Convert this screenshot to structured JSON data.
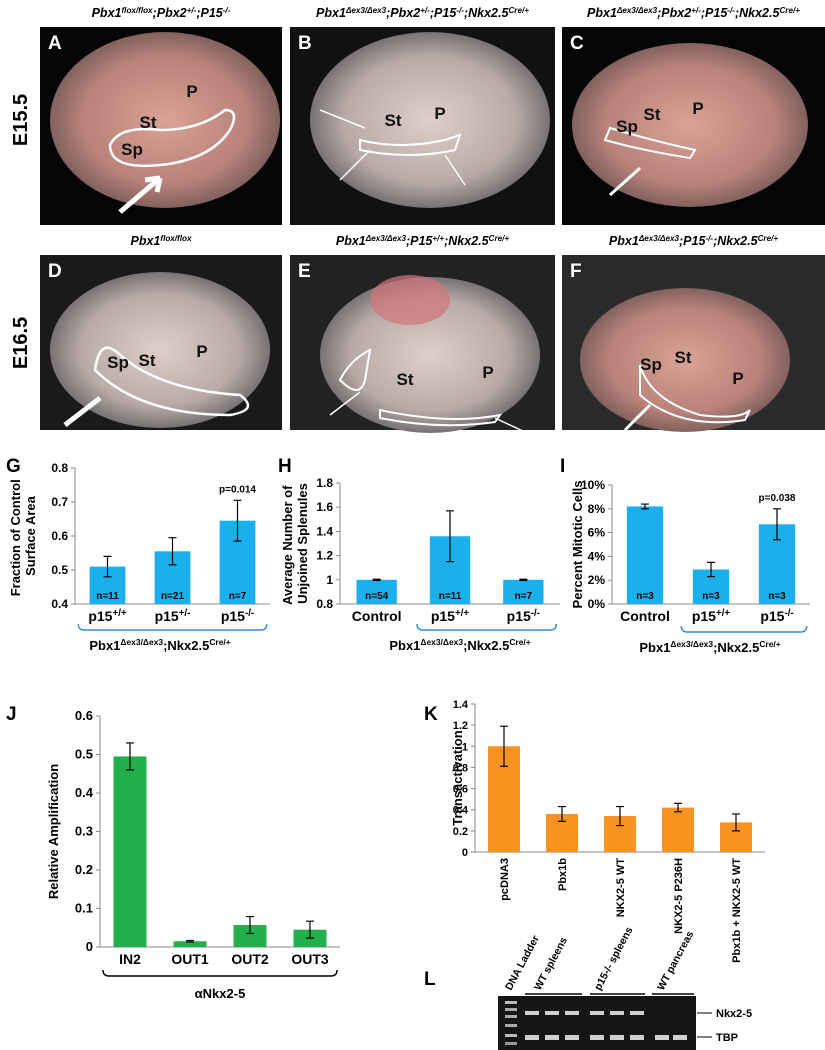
{
  "figure": {
    "row_labels": [
      "E15.5",
      "E16.5"
    ],
    "photo_panels": [
      {
        "letter": "A",
        "title_parts": [
          "Pbx1",
          "flox/flox",
          ";Pbx2",
          "+/-",
          ";P15",
          "-/-"
        ],
        "labels": [
          "St",
          "P",
          "Sp"
        ]
      },
      {
        "letter": "B",
        "title_parts": [
          "Pbx1",
          "Δex3/Δex3",
          ";Pbx2",
          "+/-",
          ";P15",
          "-/-",
          ";Nkx2.5",
          "Cre/+"
        ],
        "labels": [
          "St",
          "P"
        ]
      },
      {
        "letter": "C",
        "title_parts": [
          "Pbx1",
          "Δex3/Δex3",
          ";Pbx2",
          "+/-",
          ";P15",
          "-/-",
          ";Nkx2.5",
          "Cre/+"
        ],
        "labels": [
          "St",
          "P",
          "Sp"
        ]
      },
      {
        "letter": "D",
        "title_parts": [
          "Pbx1",
          "flox/flox"
        ],
        "labels": [
          "St",
          "P",
          "Sp"
        ]
      },
      {
        "letter": "E",
        "title_parts": [
          "Pbx1",
          "Δex3/Δex3",
          ";P15",
          "+/+",
          ";Nkx2.5",
          "Cre/+"
        ],
        "labels": [
          "St",
          "P"
        ]
      },
      {
        "letter": "F",
        "title_parts": [
          "Pbx1",
          "Δex3/Δex3",
          ";P15",
          "-/-",
          ";Nkx2.5",
          "Cre/+"
        ],
        "labels": [
          "St",
          "P",
          "Sp"
        ]
      }
    ]
  },
  "chart_data": [
    {
      "type": "bar",
      "panel_label": "G",
      "y_label": "Fraction of Control Surface Area",
      "categories": [
        "p15+/+",
        "p15+/-",
        "p15-/-"
      ],
      "values": [
        0.51,
        0.555,
        0.645
      ],
      "errors": [
        0.03,
        0.04,
        0.06
      ],
      "bar_labels": [
        "n=11",
        "n=21",
        "n=7"
      ],
      "annotations": [
        null,
        null,
        "p=0.014"
      ],
      "color": "#1ab0ee",
      "ylim": [
        0.4,
        0.8
      ],
      "yticks": [
        0.4,
        0.5,
        0.6,
        0.7,
        0.8
      ],
      "group_label_parts": [
        "Pbx1",
        "Δex3/Δex3",
        ";Nkx2.5",
        "Cre/+"
      ]
    },
    {
      "type": "bar",
      "panel_label": "H",
      "y_label": "Average Number of Unjoined Splenules",
      "categories": [
        "Control",
        "p15+/+",
        "p15-/-"
      ],
      "values": [
        1.0,
        1.36,
        1.0
      ],
      "errors": [
        0.005,
        0.21,
        0.005
      ],
      "bar_labels": [
        "n=54",
        "n=11",
        "n=7"
      ],
      "color": "#1ab0ee",
      "ylim": [
        0.8,
        1.8
      ],
      "yticks": [
        0.8,
        1,
        1.2,
        1.4,
        1.6,
        1.8
      ],
      "group_label_parts": [
        "Pbx1",
        "Δex3/Δex3",
        ";Nkx2.5",
        "Cre/+"
      ]
    },
    {
      "type": "bar",
      "panel_label": "I",
      "y_label": "Percent Mitotic Cells",
      "categories": [
        "Control",
        "p15+/+",
        "p15-/-"
      ],
      "values": [
        8.2,
        2.9,
        6.7
      ],
      "errors": [
        0.2,
        0.6,
        1.3
      ],
      "bar_labels": [
        "n=3",
        "n=3",
        "n=3"
      ],
      "annotations": [
        null,
        null,
        "p=0.038"
      ],
      "color": "#1ab0ee",
      "ylim": [
        0,
        10
      ],
      "yticks": [
        {
          "value": 0,
          "label": "0%"
        },
        {
          "value": 2,
          "label": "2%"
        },
        {
          "value": 4,
          "label": "4%"
        },
        {
          "value": 6,
          "label": "6%"
        },
        {
          "value": 8,
          "label": "8%"
        },
        {
          "value": 10,
          "label": "10%"
        }
      ],
      "group_label_parts": [
        "Pbx1",
        "Δex3/Δex3",
        ";Nkx2.5",
        "Cre/+"
      ]
    },
    {
      "type": "bar",
      "panel_label": "J",
      "y_label": "Relative Amplification",
      "categories": [
        "IN2",
        "OUT1",
        "OUT2",
        "OUT3"
      ],
      "values": [
        0.495,
        0.015,
        0.057,
        0.045
      ],
      "errors": [
        0.035,
        0.002,
        0.022,
        0.022
      ],
      "color": "#22b04b",
      "ylim": [
        0,
        0.6
      ],
      "yticks": [
        0,
        0.1,
        0.2,
        0.3,
        0.4,
        0.5,
        0.6
      ],
      "group_label_parts": [
        "αNkx2-5"
      ]
    },
    {
      "type": "bar",
      "panel_label": "K",
      "y_label": "Transactivation",
      "categories": [
        "pcDNA3",
        "Pbx1b",
        "NKX2-5 WT",
        "NKX2-5 P236H",
        "Pbx1b + NKX2-5 WT"
      ],
      "values": [
        1.0,
        0.36,
        0.34,
        0.42,
        0.28
      ],
      "errors": [
        0.19,
        0.07,
        0.09,
        0.04,
        0.08
      ],
      "color": "#f7931e",
      "ylim": [
        0,
        1.4
      ],
      "yticks": [
        0,
        0.2,
        0.4,
        0.6,
        0.8,
        1,
        1.2,
        1.4
      ]
    }
  ],
  "gel": {
    "letter": "L",
    "lane_labels": [
      "DNA Ladder",
      "WT spleens",
      "p15-/- spleens",
      "WT pancreas"
    ],
    "band_labels": [
      "Nkx2-5",
      "TBP"
    ]
  }
}
